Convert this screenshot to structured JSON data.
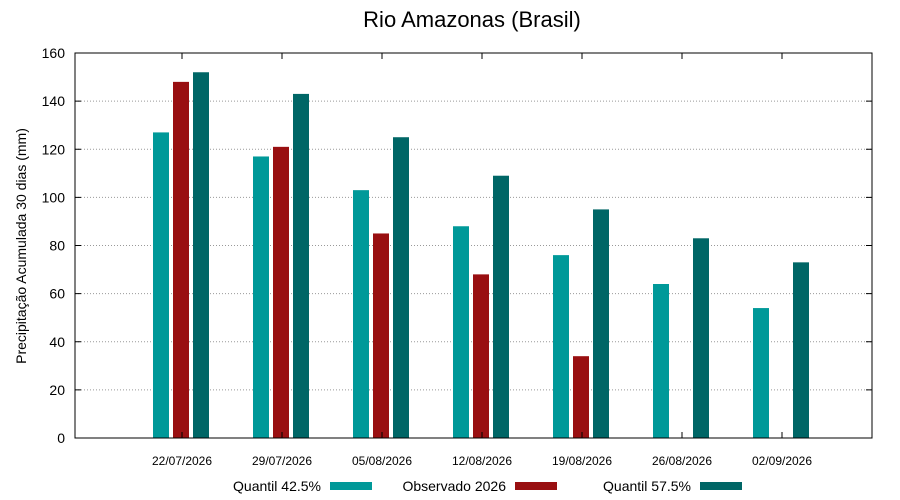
{
  "chart_data": {
    "type": "bar",
    "title": "Rio Amazonas (Brasil)",
    "xlabel": "",
    "ylabel": "Precipitação Acumulada 30 dias (mm)",
    "ylim": [
      0,
      160
    ],
    "yticks": [
      0,
      20,
      40,
      60,
      80,
      100,
      120,
      140,
      160
    ],
    "grid": true,
    "legend_position": "bottom",
    "categories": [
      "22/07/2026",
      "29/07/2026",
      "05/08/2026",
      "12/08/2026",
      "19/08/2026",
      "26/08/2026",
      "02/09/2026"
    ],
    "series": [
      {
        "name": "Quantil 42.5%",
        "color": "#009999",
        "values": [
          127,
          117,
          103,
          88,
          76,
          64,
          54
        ]
      },
      {
        "name": "Observado 2026",
        "color": "#990f11",
        "values": [
          148,
          121,
          85,
          68,
          34,
          null,
          null
        ]
      },
      {
        "name": "Quantil 57.5%",
        "color": "#006666",
        "values": [
          152,
          143,
          125,
          109,
          95,
          83,
          73
        ]
      }
    ]
  }
}
